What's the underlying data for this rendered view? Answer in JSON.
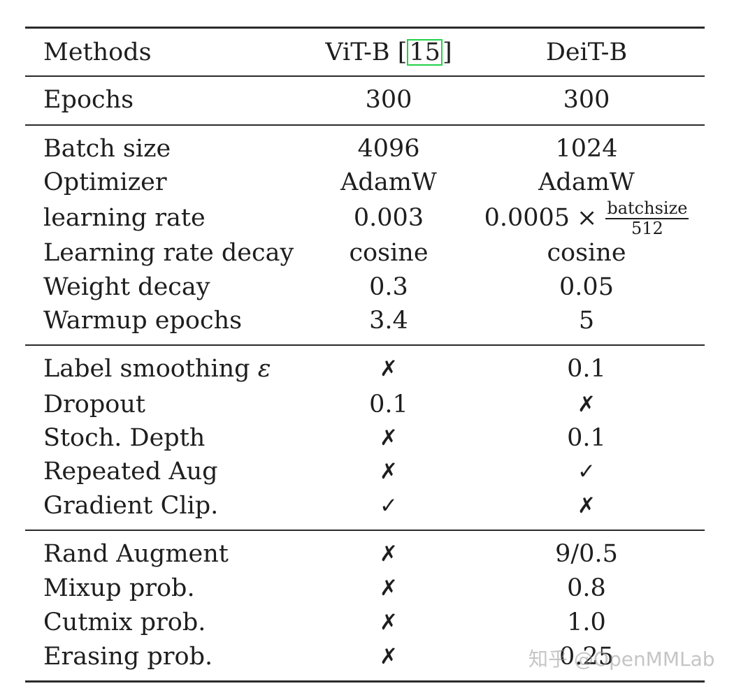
{
  "header": {
    "methods": "Methods",
    "vit_name": "ViT-B ",
    "vit_cite_open": "[",
    "vit_cite_num": "15",
    "vit_cite_close": "]",
    "deit_name": "DeiT-B"
  },
  "epochs": {
    "label": "Epochs",
    "vit": "300",
    "deit": "300"
  },
  "training": [
    {
      "label": "Batch size",
      "vit": "4096",
      "deit": "1024"
    },
    {
      "label": "Optimizer",
      "vit": "AdamW",
      "deit": "AdamW"
    }
  ],
  "learning_rate": {
    "label": "learning rate",
    "vit": "0.003",
    "deit_base": "0.0005",
    "deit_times": "×",
    "deit_num": "batchsize",
    "deit_den": "512"
  },
  "training_rest": [
    {
      "label": "Learning rate decay",
      "vit": "cosine",
      "deit": "cosine"
    },
    {
      "label": "Weight decay",
      "vit": "0.3",
      "deit": "0.05"
    },
    {
      "label": "Warmup epochs",
      "vit": "3.4",
      "deit": "5"
    }
  ],
  "regularization_first": {
    "label": "Label smoothing ",
    "symbol": "ε",
    "vit": "✗",
    "deit": "0.1"
  },
  "regularization": [
    {
      "label": "Dropout",
      "vit": "0.1",
      "deit": "✗"
    },
    {
      "label": "Stoch. Depth",
      "vit": "✗",
      "deit": "0.1"
    },
    {
      "label": "Repeated Aug",
      "vit": "✗",
      "deit": "✓"
    },
    {
      "label": "Gradient Clip.",
      "vit": "✓",
      "deit": "✗"
    }
  ],
  "augmentation": [
    {
      "label": "Rand Augment",
      "vit": "✗",
      "deit": "9/0.5"
    },
    {
      "label": "Mixup prob.",
      "vit": "✗",
      "deit": "0.8"
    },
    {
      "label": "Cutmix prob.",
      "vit": "✗",
      "deit": "1.0"
    },
    {
      "label": "Erasing prob.",
      "vit": "✗",
      "deit": "0.25"
    }
  ],
  "watermark": "知乎 @OpenMMLab"
}
